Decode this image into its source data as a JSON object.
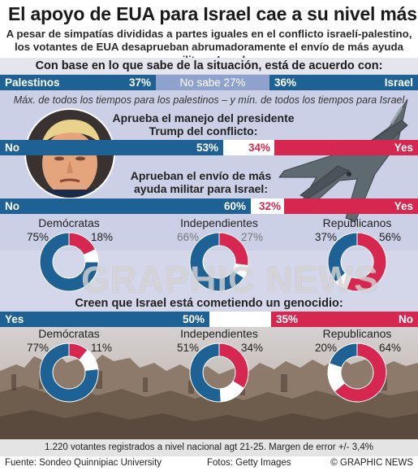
{
  "title": "El apoyo de EUA para Israel cae a su nivel más bajo",
  "subtitle": "A pesar de simpatías divididas a partes iguales en el conflicto israelí-palestino, los votantes de EUA desaprueban abrumadoramente el envío de más ayuda militar a Israel",
  "colors": {
    "blue": "#1d6195",
    "red": "#d5274f",
    "light_blue": "#8fa2cd",
    "lavender": "#cbd0e6"
  },
  "footer": {
    "note": "1.220 votantes registrados a nivel nacional agt 21-25. Margen de error +/- 3,4%",
    "source": "Fuente: Sondeo Quinnipiac University",
    "photos": "Fotos: Getty Images",
    "credit": "© GRAPHIC NEWS"
  },
  "watermark": "GRAPHIC NEWS",
  "chart_data": [
    {
      "type": "bar",
      "title": "Con base en lo que sabe de la situación, está de acuerdo con:",
      "categories": [
        "Palestinos",
        "No sabe",
        "Israel"
      ],
      "values": [
        37,
        27,
        36
      ],
      "labels": {
        "left": "Palestinos",
        "middle": "No sabe 27%",
        "right": "Israel",
        "left_pct": "37%",
        "right_pct": "36%"
      },
      "note": "Máx. de todos los tiempos para los palestinos – y mín. de todos los tiempos para Israel"
    },
    {
      "type": "bar",
      "title": "Aprueba el manejo del presidente Trump del conflicto:",
      "categories": [
        "No",
        "Yes"
      ],
      "values": [
        53,
        34
      ],
      "labels": {
        "left": "No",
        "right": "Yes",
        "left_pct": "53%",
        "right_pct": "34%"
      }
    },
    {
      "type": "bar",
      "title": "Aprueban el envío de más ayuda militar para Israel:",
      "categories": [
        "No",
        "Yes"
      ],
      "values": [
        60,
        32
      ],
      "labels": {
        "left": "No",
        "right": "Yes",
        "left_pct": "60%",
        "right_pct": "32%"
      }
    },
    {
      "type": "pie",
      "title": "Aprueban el envío de más ayuda militar para Israel:",
      "groups": [
        {
          "name": "Demócratas",
          "values": [
            75,
            18
          ],
          "labels": [
            "75%",
            "18%"
          ]
        },
        {
          "name": "Independientes",
          "values": [
            66,
            27
          ],
          "labels": [
            "66%",
            "27%"
          ]
        },
        {
          "name": "Republicanos",
          "values": [
            37,
            56
          ],
          "labels": [
            "37%",
            "56%"
          ]
        }
      ]
    },
    {
      "type": "bar",
      "title": "Creen que Israel está cometiendo un genocidio:",
      "categories": [
        "Yes",
        "No"
      ],
      "values": [
        50,
        35
      ],
      "labels": {
        "left": "Yes",
        "right": "No",
        "left_pct": "50%",
        "right_pct": "35%"
      }
    },
    {
      "type": "pie",
      "title": "Creen que Israel está cometiendo un genocidio:",
      "groups": [
        {
          "name": "Demócratas",
          "values": [
            77,
            11
          ],
          "labels": [
            "77%",
            "11%"
          ]
        },
        {
          "name": "Independientes",
          "values": [
            51,
            34
          ],
          "labels": [
            "51%",
            "34%"
          ]
        },
        {
          "name": "Republicanos",
          "values": [
            20,
            64
          ],
          "labels": [
            "20%",
            "64%"
          ]
        }
      ]
    }
  ]
}
